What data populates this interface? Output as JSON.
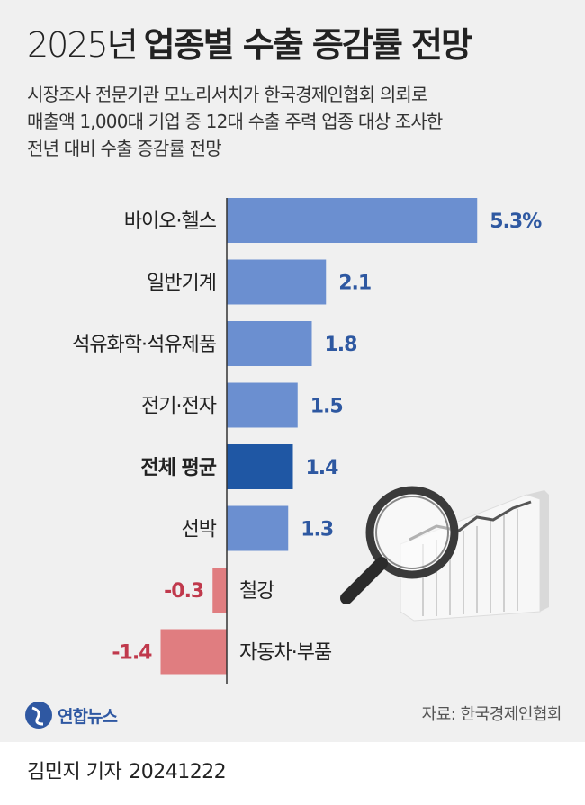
{
  "header": {
    "title_year": "2025년",
    "title_main": "업종별 수출 증감률 전망",
    "subtitle_lines": [
      "시장조사 전문기관 모노리서치가 한국경제인협회 의뢰로",
      "매출액 1,000대 기업 중 12대 수출 주력 업종 대상 조사한",
      "전년 대비 수출 증감률 전망"
    ]
  },
  "chart_data": {
    "type": "bar",
    "orientation": "horizontal",
    "categories": [
      "바이오·헬스",
      "일반기계",
      "석유화학·석유제품",
      "전기·전자",
      "전체 평균",
      "선박",
      "철강",
      "자동차·부품"
    ],
    "values": [
      5.3,
      2.1,
      1.8,
      1.5,
      1.4,
      1.3,
      -0.3,
      -1.4
    ],
    "value_labels": [
      "5.3%",
      "2.1",
      "1.8",
      "1.5",
      "1.4",
      "1.3",
      "-0.3",
      "-1.4"
    ],
    "highlight": "전체 평균",
    "colors": {
      "positive": "#6b8fd0",
      "highlight": "#1f57a4",
      "negative": "#e07d80",
      "positive_label": "#2e58a1",
      "negative_label": "#c0394c"
    }
  },
  "footer": {
    "logo_text": "연합뉴스",
    "logo_icon": "yonhap-globe-icon",
    "source": "자료: 한국경제인협회",
    "reporter": "김민지 기자",
    "date": "20241222"
  }
}
